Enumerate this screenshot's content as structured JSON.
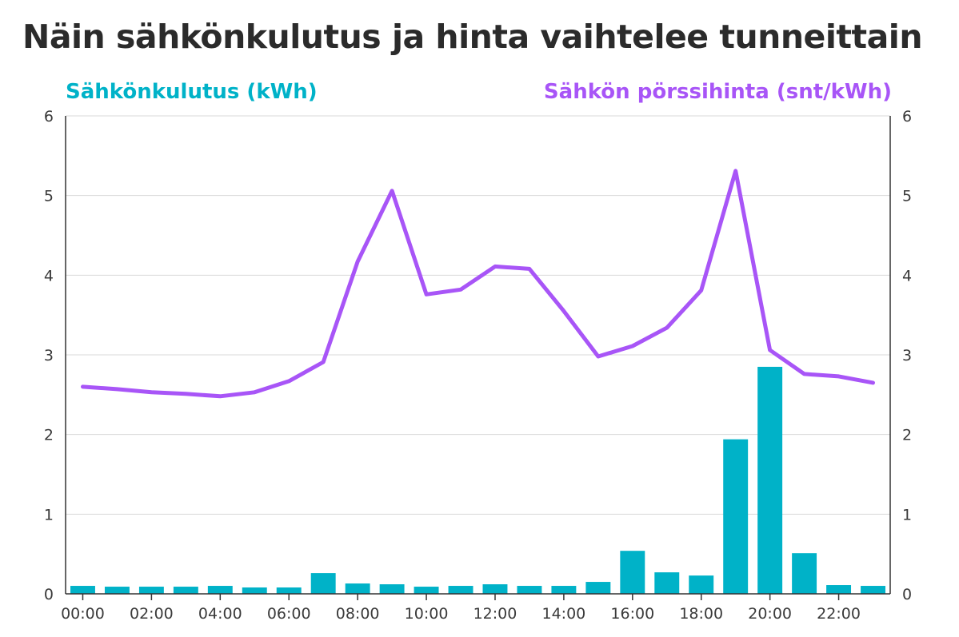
{
  "title": "Näin sähkönkulutus ja hinta vaihtelee tunneittain",
  "legend": {
    "consumption": "Sähkönkulutus (kWh)",
    "price": "Sähkön pörssihinta (snt/kWh)"
  },
  "colors": {
    "consumption": "#00b2c8",
    "price": "#a855f7",
    "grid": "#d9d9d9",
    "axis": "#333333",
    "title": "#2b2b2b"
  },
  "chart_data": {
    "type": "bar+line",
    "title": "Näin sähkönkulutus ja hinta vaihtelee tunneittain",
    "xlabel": "",
    "ylabel_left": "Sähkönkulutus (kWh)",
    "ylabel_right": "Sähkön pörssihinta (snt/kWh)",
    "ylim": [
      0,
      6
    ],
    "grid": true,
    "y_ticks": [
      "0",
      "1",
      "2",
      "3",
      "4",
      "5",
      "6"
    ],
    "x_tick_labels": [
      "00:00",
      "02:00",
      "04:00",
      "06:00",
      "08:00",
      "10:00",
      "12:00",
      "14:00",
      "16:00",
      "18:00",
      "20:00",
      "22:00"
    ],
    "hours": [
      0,
      1,
      2,
      3,
      4,
      5,
      6,
      7,
      8,
      9,
      10,
      11,
      12,
      13,
      14,
      15,
      16,
      17,
      18,
      19,
      20,
      21,
      22,
      23
    ],
    "series": [
      {
        "name": "Sähkönkulutus (kWh)",
        "kind": "bar",
        "values": [
          0.1,
          0.09,
          0.09,
          0.09,
          0.1,
          0.08,
          0.08,
          0.26,
          0.13,
          0.12,
          0.09,
          0.1,
          0.12,
          0.1,
          0.1,
          0.15,
          0.54,
          0.27,
          0.23,
          1.94,
          2.85,
          0.51,
          0.11,
          0.1
        ]
      },
      {
        "name": "Sähkön pörssihinta (snt/kWh)",
        "kind": "line",
        "values": [
          2.6,
          2.57,
          2.53,
          2.51,
          2.48,
          2.53,
          2.67,
          2.91,
          4.17,
          5.06,
          3.76,
          3.82,
          4.11,
          4.08,
          3.55,
          2.98,
          3.11,
          3.34,
          3.81,
          5.31,
          3.06,
          2.76,
          2.73,
          2.65
        ]
      }
    ]
  }
}
